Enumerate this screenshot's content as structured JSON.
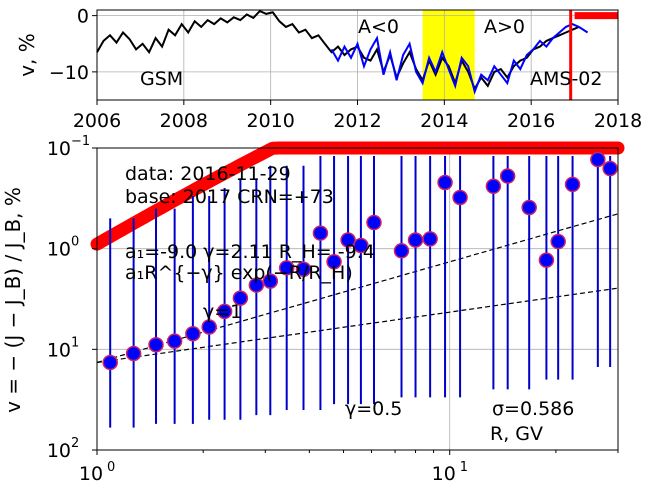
{
  "chart_data": [
    {
      "type": "line",
      "ylabel": "v, %",
      "xlim": [
        2006,
        2018
      ],
      "ylim": [
        -15,
        1
      ],
      "grid": true,
      "x_ticks": [
        "2006",
        "2008",
        "2010",
        "2012",
        "2014",
        "2016",
        "2018"
      ],
      "y_ticks": [
        "0",
        "−10"
      ],
      "annotations": {
        "gsm": "GSM",
        "ams": "AMS-02",
        "a_neg": "A<0",
        "a_pos": "A>0"
      },
      "highlight_span": {
        "from": 2013.5,
        "to": 2014.7,
        "color": "#ffff00"
      },
      "vertical_marker": {
        "x": 2016.91,
        "color": "#ff0000"
      },
      "red_segment": {
        "from": 2017,
        "to": 2018,
        "y": 0,
        "color": "#ff0000"
      },
      "colors": {
        "gsm": "#000000",
        "ams": "#0000ff"
      },
      "series": [
        {
          "name": "GSM",
          "x": [
            2006.0,
            2006.15,
            2006.3,
            2006.45,
            2006.6,
            2006.75,
            2006.9,
            2007.05,
            2007.2,
            2007.35,
            2007.5,
            2007.65,
            2007.8,
            2007.95,
            2008.1,
            2008.25,
            2008.4,
            2008.55,
            2008.7,
            2008.85,
            2009.0,
            2009.15,
            2009.3,
            2009.45,
            2009.6,
            2009.75,
            2009.9,
            2010.05,
            2010.2,
            2010.35,
            2010.5,
            2010.65,
            2010.8,
            2010.95,
            2011.1,
            2011.25,
            2011.4,
            2011.55,
            2011.7,
            2011.85,
            2012.0,
            2012.15,
            2012.3,
            2012.45,
            2012.6,
            2012.75,
            2012.9,
            2013.05,
            2013.2,
            2013.35,
            2013.5,
            2013.65,
            2013.8,
            2013.95,
            2014.1,
            2014.25,
            2014.4,
            2014.55,
            2014.7,
            2014.85,
            2015.0,
            2015.15,
            2015.3,
            2015.45,
            2015.6,
            2015.75,
            2015.9,
            2016.05,
            2016.2,
            2016.35,
            2016.5,
            2016.65,
            2016.8,
            2016.95,
            2017.1
          ],
          "y": [
            -6.5,
            -4.5,
            -3.5,
            -4.8,
            -3.0,
            -4.2,
            -6.0,
            -5.0,
            -6.5,
            -4.0,
            -5.5,
            -2.5,
            -3.5,
            -1.5,
            -3.0,
            -1.0,
            -2.0,
            -0.8,
            -1.5,
            -0.5,
            -1.2,
            -0.3,
            -0.8,
            0.2,
            -0.4,
            0.8,
            0.3,
            0.6,
            -1.0,
            -2.0,
            -1.5,
            -3.0,
            -2.5,
            -4.0,
            -3.5,
            -5.0,
            -6.5,
            -5.5,
            -7.0,
            -6.0,
            -5.5,
            -7.5,
            -8.0,
            -6.0,
            -10.0,
            -7.0,
            -11.0,
            -8.5,
            -6.5,
            -9.5,
            -11.5,
            -8.0,
            -10.5,
            -7.5,
            -9.0,
            -12.0,
            -8.0,
            -10.0,
            -13.0,
            -11.0,
            -12.5,
            -10.0,
            -9.5,
            -11.0,
            -9.0,
            -8.0,
            -7.5,
            -6.0,
            -5.5,
            -4.5,
            -4.0,
            -3.5,
            -3.0,
            -2.5,
            -2.0
          ]
        },
        {
          "name": "AMS-02",
          "x": [
            2011.4,
            2011.55,
            2011.7,
            2011.85,
            2012.0,
            2012.15,
            2012.3,
            2012.45,
            2012.6,
            2012.75,
            2012.9,
            2013.05,
            2013.2,
            2013.35,
            2013.5,
            2013.65,
            2013.8,
            2013.95,
            2014.1,
            2014.25,
            2014.4,
            2014.55,
            2014.7,
            2014.85,
            2015.0,
            2015.15,
            2015.3,
            2015.45,
            2015.6,
            2015.75,
            2015.9,
            2016.05,
            2016.2,
            2016.35,
            2016.5,
            2016.65,
            2016.8,
            2016.95,
            2017.1,
            2017.3
          ],
          "y": [
            -6.0,
            -8.0,
            -5.5,
            -7.5,
            -5.0,
            -9.0,
            -6.0,
            -4.0,
            -10.5,
            -6.5,
            -11.5,
            -7.0,
            -5.0,
            -10.0,
            -12.0,
            -7.5,
            -10.0,
            -6.5,
            -9.5,
            -12.5,
            -7.5,
            -9.0,
            -13.5,
            -10.5,
            -11.5,
            -9.0,
            -10.5,
            -12.0,
            -8.0,
            -9.5,
            -7.0,
            -6.0,
            -4.5,
            -5.5,
            -4.0,
            -3.0,
            -2.0,
            -1.5,
            -2.0,
            -3.0
          ]
        }
      ]
    },
    {
      "type": "scatter",
      "xlabel": "R, GV",
      "ylabel": "v = − (J − J_B) / J_B, %",
      "x_scale": "log",
      "y_scale": "log",
      "y_inverted": true,
      "xlim": [
        1,
        30
      ],
      "ylim": [
        100,
        0.1
      ],
      "grid": true,
      "x_ticks": [
        {
          "value": 1,
          "label": "10^0"
        },
        {
          "value": 10,
          "label": "10^1"
        }
      ],
      "y_ticks": [
        {
          "value": 0.1,
          "label": "10^−1"
        },
        {
          "value": 1,
          "label": "10^0"
        },
        {
          "value": 10,
          "label": "10^1"
        },
        {
          "value": 100,
          "label": "10^2"
        }
      ],
      "annotations": {
        "data_line": "data: 2016-11-29",
        "base_line": "base: 2017   CRN=+73",
        "params": "a₁=-9.0  γ=2.11  R_H= -9.4",
        "formula": "a₁R^{−γ} exp(−R/R_H)",
        "gamma_one": "γ=1",
        "gamma_half": "γ=0.5",
        "sigma": "σ=0.586"
      },
      "colors": {
        "points": "#0000ff",
        "point_edge": "#cc2266",
        "fit": "#ff0000",
        "error_bars": "#0000cc"
      },
      "points": [
        {
          "x": 1.09,
          "y": 13.5,
          "yerr_low": 0.5,
          "yerr_high": 60
        },
        {
          "x": 1.27,
          "y": 11.0,
          "yerr_low": 0.5,
          "yerr_high": 60
        },
        {
          "x": 1.47,
          "y": 9.0,
          "yerr_low": 0.4,
          "yerr_high": 55
        },
        {
          "x": 1.66,
          "y": 8.3,
          "yerr_low": 0.4,
          "yerr_high": 55
        },
        {
          "x": 1.87,
          "y": 7.0,
          "yerr_low": 0.3,
          "yerr_high": 55
        },
        {
          "x": 2.08,
          "y": 6.0,
          "yerr_low": 0.3,
          "yerr_high": 50
        },
        {
          "x": 2.3,
          "y": 4.2,
          "yerr_low": 0.25,
          "yerr_high": 50
        },
        {
          "x": 2.55,
          "y": 3.1,
          "yerr_low": 0.2,
          "yerr_high": 50
        },
        {
          "x": 2.83,
          "y": 2.3,
          "yerr_low": 0.2,
          "yerr_high": 45
        },
        {
          "x": 3.1,
          "y": 2.1,
          "yerr_low": 0.15,
          "yerr_high": 45
        },
        {
          "x": 3.45,
          "y": 1.55,
          "yerr_low": 0.15,
          "yerr_high": 40
        },
        {
          "x": 3.85,
          "y": 1.6,
          "yerr_low": 0.15,
          "yerr_high": 40
        },
        {
          "x": 4.3,
          "y": 0.7,
          "yerr_low": 0.12,
          "yerr_high": 40
        },
        {
          "x": 4.7,
          "y": 1.35,
          "yerr_low": 0.12,
          "yerr_high": 35
        },
        {
          "x": 5.15,
          "y": 0.82,
          "yerr_low": 0.12,
          "yerr_high": 35
        },
        {
          "x": 5.6,
          "y": 0.93,
          "yerr_low": 0.12,
          "yerr_high": 35
        },
        {
          "x": 6.1,
          "y": 0.55,
          "yerr_low": 0.12,
          "yerr_high": 35
        },
        {
          "x": 7.3,
          "y": 1.05,
          "yerr_low": 0.12,
          "yerr_high": 30
        },
        {
          "x": 8.0,
          "y": 0.82,
          "yerr_low": 0.12,
          "yerr_high": 30
        },
        {
          "x": 8.8,
          "y": 0.8,
          "yerr_low": 0.12,
          "yerr_high": 30
        },
        {
          "x": 9.7,
          "y": 0.22,
          "yerr_low": 0.12,
          "yerr_high": 30
        },
        {
          "x": 10.7,
          "y": 0.31,
          "yerr_low": 0.12,
          "yerr_high": 30
        },
        {
          "x": 13.3,
          "y": 0.24,
          "yerr_low": 0.12,
          "yerr_high": 25
        },
        {
          "x": 14.6,
          "y": 0.19,
          "yerr_low": 0.12,
          "yerr_high": 25
        },
        {
          "x": 16.8,
          "y": 0.39,
          "yerr_low": 0.12,
          "yerr_high": 25
        },
        {
          "x": 18.8,
          "y": 1.3,
          "yerr_low": 0.12,
          "yerr_high": 20
        },
        {
          "x": 20.3,
          "y": 0.85,
          "yerr_low": 0.12,
          "yerr_high": 20
        },
        {
          "x": 22.3,
          "y": 0.23,
          "yerr_low": 0.12,
          "yerr_high": 20
        },
        {
          "x": 26.3,
          "y": 0.13,
          "yerr_low": 0.12,
          "yerr_high": 15
        },
        {
          "x": 28.5,
          "y": 0.16,
          "yerr_low": 0.12,
          "yerr_high": 15
        }
      ],
      "fit_curve": {
        "a1": -9.0,
        "gamma": 2.11,
        "RH": -9.4,
        "x_from": 1.0,
        "x_to": 30.0
      },
      "reference_lines": [
        {
          "label": "γ=1",
          "gamma": 1,
          "y_at_1": 13.5
        },
        {
          "label": "γ=0.5",
          "gamma": 0.5,
          "y_at_1": 13.5
        }
      ]
    }
  ]
}
